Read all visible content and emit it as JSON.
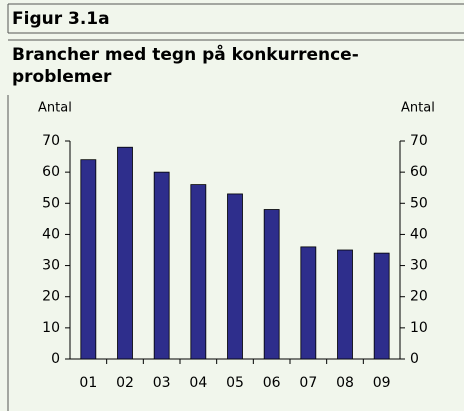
{
  "chart_data": {
    "type": "bar",
    "header": "Figur 3.1a",
    "title_lines": [
      "Brancher med tegn på konkurrence-",
      "problemer"
    ],
    "ylabel": "Antal",
    "y2label": "Antal",
    "categories": [
      "01",
      "02",
      "03",
      "04",
      "05",
      "06",
      "07",
      "08",
      "09"
    ],
    "values": [
      64,
      68,
      60,
      56,
      53,
      48,
      36,
      35,
      34
    ],
    "color": "#2e2e8c",
    "ylim": [
      0,
      70
    ],
    "yticks": [
      0,
      10,
      20,
      30,
      40,
      50,
      60,
      70
    ],
    "y2lim": [
      0,
      70
    ],
    "y2ticks": [
      0,
      10,
      20,
      30,
      40,
      50,
      60,
      70
    ]
  }
}
